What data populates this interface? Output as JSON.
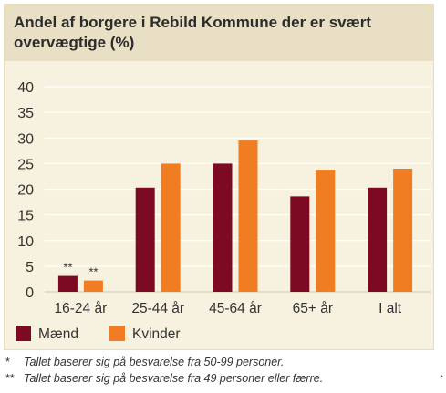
{
  "title": "Andel af borgere i Rebild Kommune der er svært overvægtige (%)",
  "colors": {
    "maend": "#7c0a22",
    "kvinder": "#f07d22",
    "background": "#f7f1df",
    "title_band": "#e9dfc4",
    "grid": "#ffffff"
  },
  "chart_data": {
    "type": "bar",
    "title": "Andel af borgere i Rebild Kommune der er svært overvægtige (%)",
    "categories": [
      "16-24 år",
      "25-44 år",
      "45-64 år",
      "65+ år",
      "I alt"
    ],
    "series": [
      {
        "name": "Mænd",
        "color": "#7c0a22",
        "values": [
          3.1,
          20.3,
          25.0,
          18.6,
          20.3
        ]
      },
      {
        "name": "Kvinder",
        "color": "#f07d22",
        "values": [
          2.2,
          25.0,
          29.5,
          23.8,
          24.0
        ]
      }
    ],
    "annotations": [
      {
        "category": "16-24 år",
        "series": "Mænd",
        "text": "**"
      },
      {
        "category": "16-24 år",
        "series": "Kvinder",
        "text": "**"
      }
    ],
    "yticks": [
      "0",
      "5",
      "10",
      "15",
      "20",
      "25",
      "30",
      "35",
      "40"
    ],
    "ylim": [
      0,
      40
    ],
    "xlabel": "",
    "ylabel": "",
    "grid": true,
    "legend": "bottom-left"
  },
  "footnotes": [
    {
      "mark": "*",
      "text": "Tallet baserer sig på besvarelse fra 50-99 personer."
    },
    {
      "mark": "**",
      "text": "Tallet baserer sig på besvarelse fra 49 personer eller færre."
    }
  ],
  "stray_mark": "."
}
